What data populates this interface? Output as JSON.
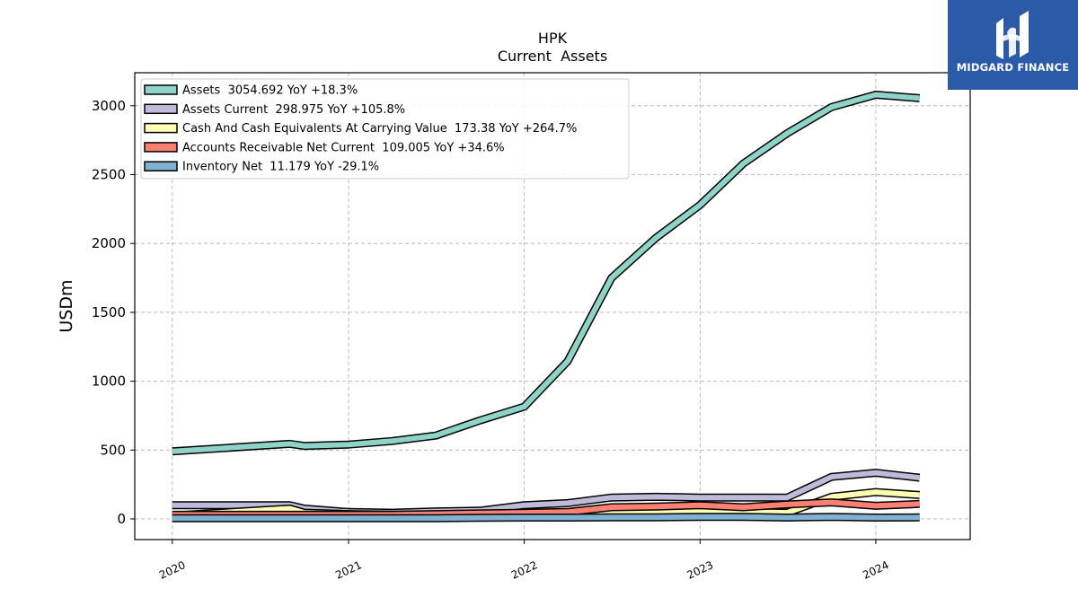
{
  "logo": {
    "text": "MIDGARD FINANCE",
    "color": "#2b5aa8",
    "icon": "midgard-logo-icon"
  },
  "chart_data": {
    "type": "line",
    "title": "HPK",
    "subtitle": "Current  Assets",
    "ylabel": "USDm",
    "xlabel": "",
    "ylim": [
      -150,
      3240
    ],
    "xlim": [
      "2019-10-15",
      "2024-07-15"
    ],
    "yticks": [
      0,
      500,
      1000,
      1500,
      2000,
      2500,
      3000
    ],
    "xticks": [
      "2020",
      "2021",
      "2022",
      "2023",
      "2024"
    ],
    "grid": true,
    "legend_position": "top-left",
    "series": [
      {
        "name": "Assets",
        "legend": "Assets  3054.692 YoY +18.3%",
        "color": "#8dd3c7",
        "points": [
          [
            "2020-01-01",
            490
          ],
          [
            "2020-09-01",
            545
          ],
          [
            "2020-10-01",
            530
          ],
          [
            "2021-01-01",
            540
          ],
          [
            "2021-04-01",
            565
          ],
          [
            "2021-07-01",
            605
          ],
          [
            "2021-10-01",
            715
          ],
          [
            "2022-01-01",
            815
          ],
          [
            "2022-04-01",
            1145
          ],
          [
            "2022-07-01",
            1750
          ],
          [
            "2022-10-01",
            2040
          ],
          [
            "2023-01-01",
            2280
          ],
          [
            "2023-04-01",
            2580
          ],
          [
            "2023-07-01",
            2800
          ],
          [
            "2023-10-01",
            2990
          ],
          [
            "2024-01-01",
            3080
          ],
          [
            "2024-04-01",
            3054.692
          ]
        ]
      },
      {
        "name": "Assets Current",
        "legend": "Assets Current  298.975 YoY +105.8%",
        "color": "#bebada",
        "points": [
          [
            "2020-01-01",
            100
          ],
          [
            "2020-09-01",
            100
          ],
          [
            "2020-10-01",
            75
          ],
          [
            "2021-01-01",
            50
          ],
          [
            "2021-04-01",
            45
          ],
          [
            "2021-07-01",
            55
          ],
          [
            "2021-10-01",
            60
          ],
          [
            "2022-01-01",
            100
          ],
          [
            "2022-04-01",
            115
          ],
          [
            "2022-07-01",
            155
          ],
          [
            "2022-10-01",
            160
          ],
          [
            "2023-01-01",
            155
          ],
          [
            "2023-04-01",
            155
          ],
          [
            "2023-07-01",
            155
          ],
          [
            "2023-10-01",
            305
          ],
          [
            "2024-01-01",
            335
          ],
          [
            "2024-04-01",
            298.975
          ]
        ]
      },
      {
        "name": "Cash And Cash Equivalents At Carrying Value",
        "legend": "Cash And Cash Equivalents At Carrying Value  173.38 YoY +264.7%",
        "color": "#ffffb3",
        "points": [
          [
            "2020-01-01",
            25
          ],
          [
            "2020-09-01",
            75
          ],
          [
            "2020-10-01",
            45
          ],
          [
            "2021-01-01",
            35
          ],
          [
            "2021-04-01",
            30
          ],
          [
            "2021-07-01",
            30
          ],
          [
            "2021-10-01",
            30
          ],
          [
            "2022-01-01",
            35
          ],
          [
            "2022-04-01",
            35
          ],
          [
            "2022-07-01",
            45
          ],
          [
            "2022-10-01",
            55
          ],
          [
            "2023-01-01",
            60
          ],
          [
            "2023-04-01",
            50
          ],
          [
            "2023-07-01",
            45
          ],
          [
            "2023-10-01",
            160
          ],
          [
            "2024-01-01",
            195
          ],
          [
            "2024-04-01",
            173.38
          ]
        ]
      },
      {
        "name": "Accounts Receivable Net Current",
        "legend": "Accounts Receivable Net Current  109.005 YoY +34.6%",
        "color": "#fb8072",
        "points": [
          [
            "2020-01-01",
            30
          ],
          [
            "2020-09-01",
            30
          ],
          [
            "2020-10-01",
            30
          ],
          [
            "2021-01-01",
            30
          ],
          [
            "2021-04-01",
            30
          ],
          [
            "2021-07-01",
            35
          ],
          [
            "2021-10-01",
            40
          ],
          [
            "2022-01-01",
            45
          ],
          [
            "2022-04-01",
            50
          ],
          [
            "2022-07-01",
            85
          ],
          [
            "2022-10-01",
            90
          ],
          [
            "2023-01-01",
            100
          ],
          [
            "2023-04-01",
            85
          ],
          [
            "2023-07-01",
            105
          ],
          [
            "2023-10-01",
            120
          ],
          [
            "2024-01-01",
            95
          ],
          [
            "2024-04-01",
            109.005
          ]
        ]
      },
      {
        "name": "Inventory Net",
        "legend": "Inventory Net  11.179 YoY -29.1%",
        "color": "#80b1d3",
        "points": [
          [
            "2020-01-01",
            5
          ],
          [
            "2020-09-01",
            5
          ],
          [
            "2020-10-01",
            5
          ],
          [
            "2021-01-01",
            5
          ],
          [
            "2021-04-01",
            5
          ],
          [
            "2021-07-01",
            5
          ],
          [
            "2021-10-01",
            8
          ],
          [
            "2022-01-01",
            10
          ],
          [
            "2022-04-01",
            10
          ],
          [
            "2022-07-01",
            12
          ],
          [
            "2022-10-01",
            12
          ],
          [
            "2023-01-01",
            15
          ],
          [
            "2023-04-01",
            15
          ],
          [
            "2023-07-01",
            10
          ],
          [
            "2023-10-01",
            15
          ],
          [
            "2024-01-01",
            10
          ],
          [
            "2024-04-01",
            11.179
          ]
        ]
      }
    ]
  }
}
